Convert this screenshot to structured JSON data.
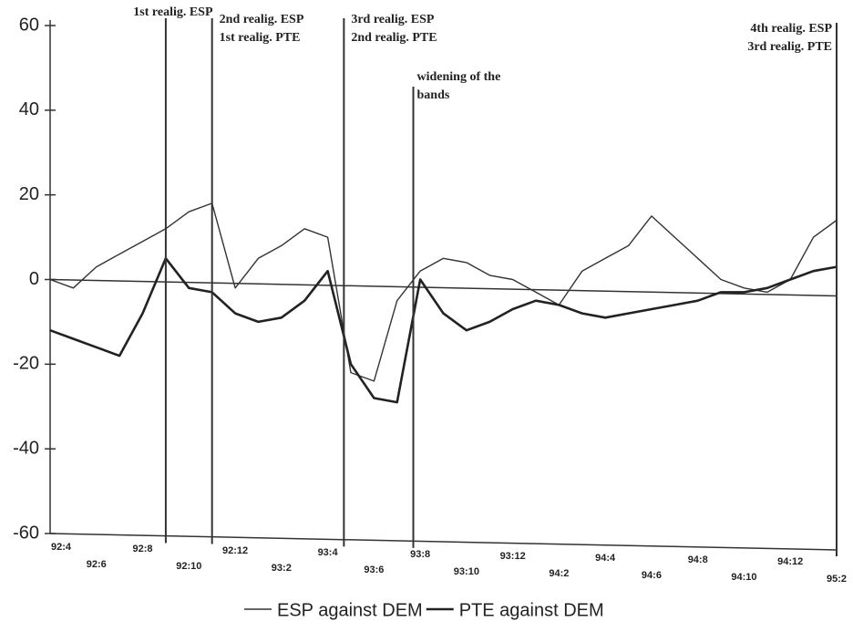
{
  "chart_data": {
    "type": "line",
    "categories": [
      "92:4",
      null,
      "92:6",
      null,
      "92:8",
      null,
      "92:10",
      null,
      "92:12",
      null,
      "93:2",
      null,
      "93:4",
      null,
      "93:6",
      null,
      "93:8",
      null,
      "93:10",
      null,
      "93:12",
      null,
      "94:2",
      null,
      "94:4",
      null,
      "94:6",
      null,
      "94:8",
      null,
      "94:10",
      null,
      "94:12",
      null,
      "95:2"
    ],
    "series": [
      {
        "name": "ESP against DEM",
        "color": "#333333",
        "width": 1.4,
        "values": [
          0,
          -2,
          3,
          6,
          9,
          12,
          16,
          18,
          -2,
          5,
          8,
          12,
          10,
          -22,
          -24,
          -5,
          2,
          5,
          4,
          1,
          0,
          -3,
          -6,
          2,
          5,
          8,
          15,
          10,
          5,
          0,
          -2,
          -3,
          0,
          10,
          14
        ]
      },
      {
        "name": "PTE against DEM",
        "color": "#222222",
        "width": 2.6,
        "values": [
          -12,
          -14,
          -16,
          -18,
          -8,
          5,
          -2,
          -3,
          -8,
          -10,
          -9,
          -5,
          2,
          -20,
          -28,
          -29,
          0,
          -8,
          -12,
          -10,
          -7,
          -5,
          -6,
          -8,
          -9,
          -8,
          -7,
          -6,
          -5,
          -3,
          -3,
          -2,
          0,
          2,
          3
        ]
      }
    ],
    "ylim": [
      -60,
      60
    ],
    "yticks": [
      -60,
      -40,
      -20,
      0,
      20,
      40,
      60
    ],
    "annotations": [
      {
        "x": 5,
        "lines": [
          "1st realig. ESP"
        ]
      },
      {
        "x": 7,
        "lines": [
          "2nd realig. ESP",
          "1st realig. PTE"
        ]
      },
      {
        "x": 12.7,
        "lines": [
          "3rd realig. ESP",
          "2nd realig. PTE"
        ]
      },
      {
        "x": 15.7,
        "lines": [
          "widening of the",
          "bands"
        ]
      },
      {
        "x": 34,
        "lines": [
          "4th realig. ESP",
          "3rd realig. PTE"
        ]
      }
    ]
  }
}
